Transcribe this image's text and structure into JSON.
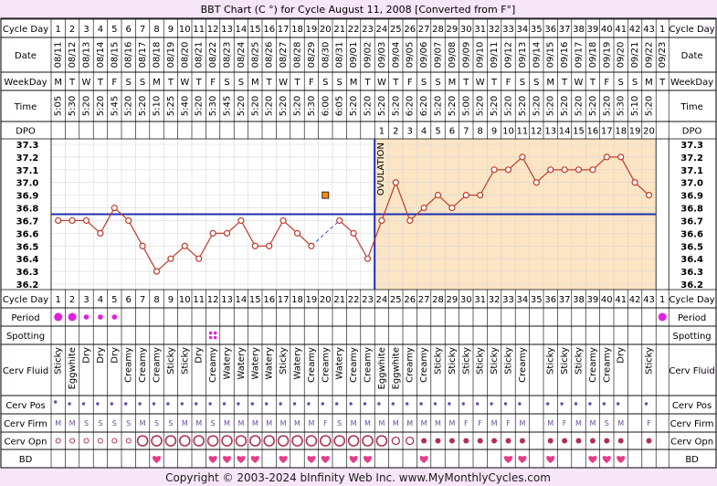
{
  "title": "BBT Chart (C °) for Cycle August 11, 2008  [Converted from F°]",
  "footer": "Copyright © 2003-2024 bInfinity Web Inc.     www.MyMonthlyCycles.com",
  "ovulation_label": "OVULATION",
  "row_labels": {
    "cycle_day": "Cycle Day",
    "date": "Date",
    "weekday": "WeekDay",
    "time": "Time",
    "dpo": "DPO",
    "period": "Period",
    "spotting": "Spotting",
    "cerv_fluid": "Cerv Fluid",
    "cerv_pos": "Cerv Pos",
    "cerv_firm": "Cerv Firm",
    "cerv_opn": "Cerv Opn",
    "bd": "BD"
  },
  "colors": {
    "background": "#f7e6f7",
    "luteal_fill": "#fbe5c4",
    "follicular_fill": "#ffffff",
    "line": "#c0392b",
    "coverline": "#1f2fb0",
    "ovulation_line": "#1f2fb0",
    "heart": "#e83c8a",
    "period_dot": "#e020e0",
    "gap_line": "#3050e0",
    "discarded": "#ff8c00"
  },
  "cycle_days": [
    "1",
    "2",
    "3",
    "4",
    "5",
    "6",
    "7",
    "8",
    "9",
    "10",
    "11",
    "12",
    "13",
    "14",
    "15",
    "16",
    "17",
    "18",
    "19",
    "20",
    "21",
    "22",
    "23",
    "24",
    "25",
    "26",
    "27",
    "28",
    "29",
    "30",
    "31",
    "32",
    "33",
    "34",
    "35",
    "36",
    "37",
    "38",
    "39",
    "40",
    "41",
    "42",
    "43"
  ],
  "next_cycle": {
    "day": "1",
    "date": "09/23",
    "weekday": "T",
    "period": "heavy"
  },
  "dates": [
    "08/11",
    "08/12",
    "08/13",
    "08/14",
    "08/15",
    "08/16",
    "08/17",
    "08/18",
    "08/19",
    "08/20",
    "08/21",
    "08/22",
    "08/23",
    "08/24",
    "08/25",
    "08/26",
    "08/27",
    "08/28",
    "08/29",
    "08/30",
    "08/31",
    "09/01",
    "09/02",
    "09/03",
    "09/04",
    "09/05",
    "09/06",
    "09/07",
    "09/08",
    "09/09",
    "09/10",
    "09/11",
    "09/12",
    "09/13",
    "09/14",
    "09/15",
    "09/16",
    "09/17",
    "09/18",
    "09/19",
    "09/20",
    "09/21",
    "09/22"
  ],
  "weekdays": [
    "M",
    "T",
    "W",
    "T",
    "F",
    "S",
    "S",
    "M",
    "T",
    "W",
    "T",
    "F",
    "S",
    "S",
    "M",
    "T",
    "W",
    "T",
    "F",
    "S",
    "S",
    "M",
    "T",
    "W",
    "T",
    "F",
    "S",
    "S",
    "M",
    "T",
    "W",
    "T",
    "F",
    "S",
    "S",
    "M",
    "T",
    "W",
    "T",
    "F",
    "S",
    "S",
    "M"
  ],
  "times": [
    "5:05",
    "5:30",
    "5:20",
    "5:20",
    "5:45",
    "5:20",
    "5:20",
    "5:10",
    "5:25",
    "5:40",
    "5:20",
    "5:30",
    "5:45",
    "5:20",
    "5:20",
    "5:20",
    "5:20",
    "5:20",
    "5:30",
    "6:00",
    "6:05",
    "5:20",
    "5:20",
    "5:20",
    "5:20",
    "6:20",
    "6:20",
    "5:20",
    "5:20",
    "5:00",
    "5:20",
    "5:20",
    "5:20",
    "5:20",
    "5:20",
    "5:20",
    "5:20",
    "5:20",
    "5:20",
    "5:20",
    "5:30",
    "5:10",
    "5:20"
  ],
  "dpo": [
    "",
    "",
    "",
    "",
    "",
    "",
    "",
    "",
    "",
    "",
    "",
    "",
    "",
    "",
    "",
    "",
    "",
    "",
    "",
    "",
    "",
    "",
    "",
    "1",
    "2",
    "3",
    "4",
    "5",
    "6",
    "7",
    "8",
    "9",
    "10",
    "11",
    "12",
    "13",
    "14",
    "15",
    "16",
    "17",
    "18",
    "19",
    "20"
  ],
  "period": [
    "heavy",
    "heavy",
    "light",
    "light",
    "light",
    "",
    "",
    "",
    "",
    "",
    "",
    "",
    "",
    "",
    "",
    "",
    "",
    "",
    "",
    "",
    "",
    "",
    "",
    "",
    "",
    "",
    "",
    "",
    "",
    "",
    "",
    "",
    "",
    "",
    "",
    "",
    "",
    "",
    "",
    "",
    "",
    "",
    ""
  ],
  "spotting": [
    "",
    "",
    "",
    "",
    "",
    "",
    "",
    "",
    "",
    "",
    "",
    "spot",
    "",
    "",
    "",
    "",
    "",
    "",
    "",
    "",
    "",
    "",
    "",
    "",
    "",
    "",
    "",
    "",
    "",
    "",
    "",
    "",
    "",
    "",
    "",
    "",
    "",
    "",
    "",
    "",
    "",
    "",
    ""
  ],
  "cerv_fluid": [
    "Sticky",
    "Eggwhite",
    "Dry",
    "Dry",
    "Dry",
    "Creamy",
    "Creamy",
    "Creamy",
    "Sticky",
    "Sticky",
    "Dry",
    "Creamy",
    "Watery",
    "Watery",
    "Watery",
    "Watery",
    "Sticky",
    "Watery",
    "Creamy",
    "Creamy",
    "Watery",
    "Creamy",
    "Creamy",
    "Eggwhite",
    "Eggwhite",
    "Creamy",
    "Creamy",
    "Sticky",
    "Sticky",
    "Sticky",
    "Sticky",
    "Sticky",
    "Sticky",
    "Creamy",
    "",
    "Sticky",
    "Sticky",
    "Sticky",
    "Creamy",
    "Creamy",
    "Dry",
    "",
    "Sticky"
  ],
  "cerv_pos": [
    "l",
    "m",
    "m",
    "m",
    "m",
    "m",
    "m",
    "m",
    "m",
    "m",
    "m",
    "m",
    "m",
    "m",
    "m",
    "m",
    "m",
    "m",
    "m",
    "m",
    "m",
    "m",
    "m",
    "m",
    "m",
    "m",
    "m",
    "m",
    "m",
    "m",
    "m",
    "m",
    "m",
    "m",
    "",
    "m",
    "m",
    "m",
    "m",
    "m",
    "m",
    "",
    "m"
  ],
  "cerv_firm": [
    "M",
    "M",
    "S",
    "S",
    "S",
    "S",
    "M",
    "S",
    "S",
    "M",
    "M",
    "S",
    "M",
    "M",
    "M",
    "M",
    "M",
    "M",
    "M",
    "F",
    "S",
    "M",
    "M",
    "M",
    "M",
    "M",
    "M",
    "M",
    "M",
    "F",
    "F",
    "M",
    "F",
    "M",
    "",
    "M",
    "F",
    "M",
    "M",
    "S",
    "M",
    "",
    "F"
  ],
  "cerv_opn": [
    "s",
    "s",
    "s",
    "s",
    "s",
    "s",
    "l",
    "l",
    "l",
    "l",
    "l",
    "l",
    "l",
    "l",
    "l",
    "l",
    "l",
    "l",
    "l",
    "l",
    "l",
    "l",
    "l",
    "l",
    "m",
    "m",
    "c",
    "c",
    "c",
    "c",
    "c",
    "c",
    "c",
    "c",
    "",
    "c",
    "c",
    "c",
    "c",
    "c",
    "c",
    "",
    "c"
  ],
  "bd": [
    "",
    "",
    "",
    "",
    "",
    "",
    "",
    "h",
    "",
    "",
    "",
    "h",
    "h",
    "h",
    "h",
    "",
    "h",
    "",
    "h",
    "h",
    "",
    "h",
    "h",
    "",
    "",
    "",
    "h",
    "",
    "",
    "",
    "",
    "",
    "h",
    "h",
    "",
    "h",
    "",
    "",
    "h",
    "h",
    "h",
    "",
    ""
  ],
  "chart_data": {
    "type": "line",
    "ylabel": "",
    "ylim": [
      36.2,
      37.3
    ],
    "y_ticks": [
      "37.3",
      "37.2",
      "37.1",
      "37.0",
      "36.9",
      "36.8",
      "36.7",
      "36.6",
      "36.5",
      "36.4",
      "36.3",
      "36.2"
    ],
    "x": [
      1,
      2,
      3,
      4,
      5,
      6,
      7,
      8,
      9,
      10,
      11,
      12,
      13,
      14,
      15,
      16,
      17,
      18,
      19,
      20,
      21,
      22,
      23,
      24,
      25,
      26,
      27,
      28,
      29,
      30,
      31,
      32,
      33,
      34,
      35,
      36,
      37,
      38,
      39,
      40,
      41,
      42,
      43
    ],
    "series": [
      {
        "values": [
          36.7,
          36.7,
          36.7,
          36.6,
          36.8,
          36.7,
          36.5,
          36.3,
          36.4,
          36.5,
          36.4,
          36.6,
          36.6,
          36.7,
          36.5,
          36.5,
          36.7,
          36.6,
          36.5,
          null,
          36.7,
          36.6,
          36.4,
          36.7,
          37.0,
          36.7,
          36.8,
          36.9,
          36.8,
          36.9,
          36.9,
          37.1,
          37.1,
          37.2,
          37.0,
          37.1,
          37.1,
          37.1,
          37.1,
          37.2,
          37.2,
          37.0,
          36.9
        ]
      }
    ],
    "discarded_points": [
      {
        "x": 20,
        "y": 36.9
      }
    ],
    "coverline": 36.75,
    "ovulation_day": 23
  }
}
